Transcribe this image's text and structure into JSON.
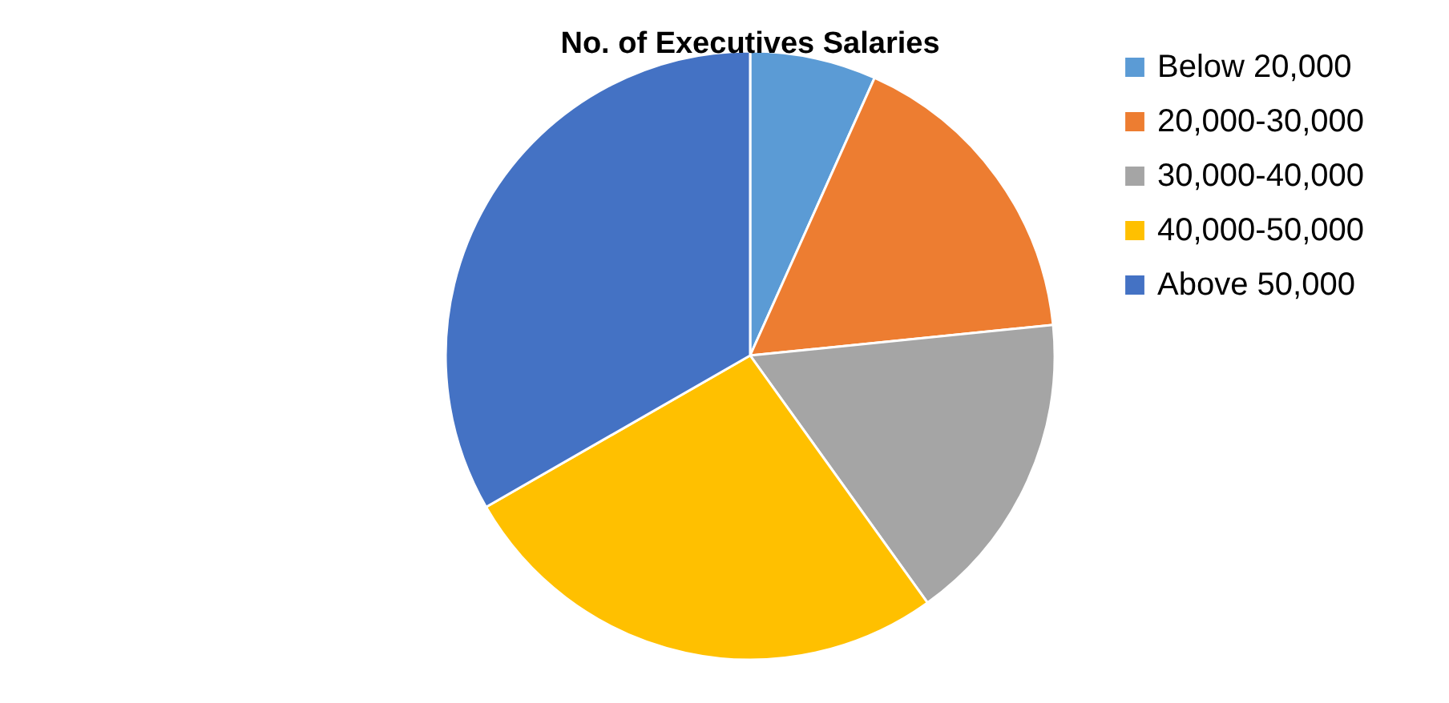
{
  "chart_data": {
    "type": "pie",
    "title": "No. of Executives Salaries",
    "categories": [
      "Below 20,000",
      "20,000-30,000",
      "30,000-40,000",
      "40,000-50,000",
      "Above 50,000"
    ],
    "values": [
      6.7,
      16.7,
      16.7,
      26.6,
      33.3
    ],
    "colors": [
      "#5b9bd5",
      "#ed7d31",
      "#a5a5a5",
      "#ffc000",
      "#4472c4"
    ],
    "legend": "right"
  }
}
